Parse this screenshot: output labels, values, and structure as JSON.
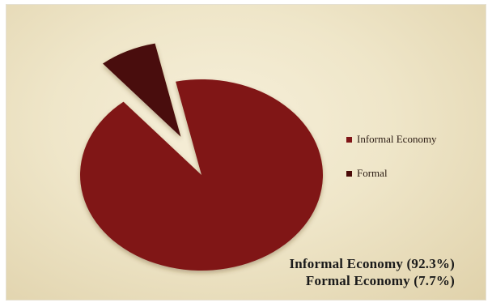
{
  "chart_data": {
    "type": "pie",
    "categories": [
      "Informal Economy",
      "Formal"
    ],
    "values": [
      92.3,
      7.7
    ],
    "colors": [
      "#801517",
      "#4a0a08"
    ],
    "exploded": [
      false,
      true
    ],
    "legend_position": "right",
    "annotations": [
      "Informal Economy (92.3%)",
      "Formal Economy (7.7%)"
    ]
  }
}
